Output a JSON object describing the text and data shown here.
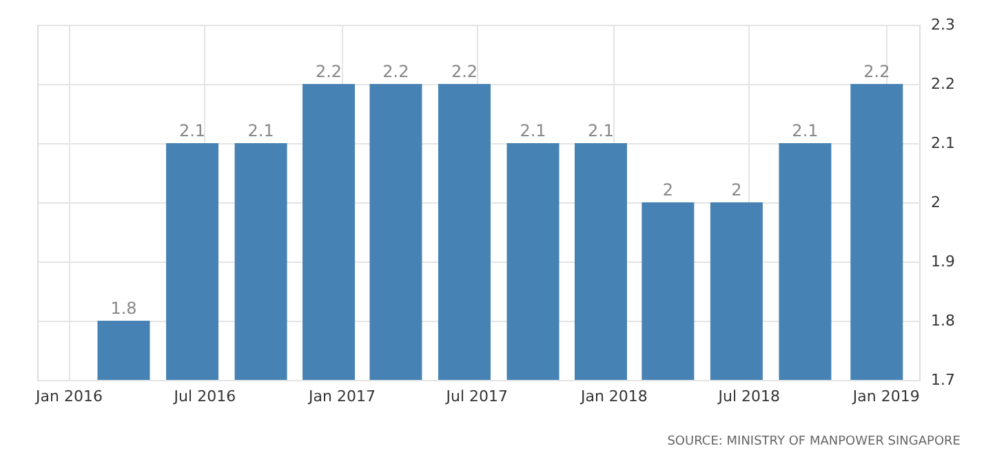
{
  "chart_data": {
    "type": "bar",
    "x": [
      "2016-03-15",
      "2016-06-15",
      "2016-09-15",
      "2016-12-15",
      "2017-03-15",
      "2017-06-15",
      "2017-09-15",
      "2017-12-15",
      "2018-03-15",
      "2018-06-15",
      "2018-09-15",
      "2018-12-20"
    ],
    "values": [
      1.8,
      2.1,
      2.1,
      2.2,
      2.2,
      2.2,
      2.1,
      2.1,
      2,
      2,
      2.1,
      2.2
    ],
    "color": "#4682b4",
    "xlim": [
      "2015-11-20",
      "2019-02-15"
    ],
    "xticks": [
      {
        "value": "2016-01-01",
        "label": "Jan 2016"
      },
      {
        "value": "2016-07-01",
        "label": "Jul 2016"
      },
      {
        "value": "2017-01-01",
        "label": "Jan 2017"
      },
      {
        "value": "2017-07-01",
        "label": "Jul 2017"
      },
      {
        "value": "2018-01-01",
        "label": "Jan 2018"
      },
      {
        "value": "2018-07-01",
        "label": "Jul 2018"
      },
      {
        "value": "2019-01-01",
        "label": "Jan 2019"
      }
    ],
    "ylim": [
      1.7,
      2.3
    ],
    "yticks": [
      1.7,
      1.8,
      1.9,
      {
        "value": 2,
        "label": "2"
      },
      2.1,
      2.2,
      2.3
    ],
    "grid": true,
    "data_labels": true,
    "annotations": [
      "SOURCE: MINISTRY OF MANPOWER SINGAPORE"
    ]
  }
}
